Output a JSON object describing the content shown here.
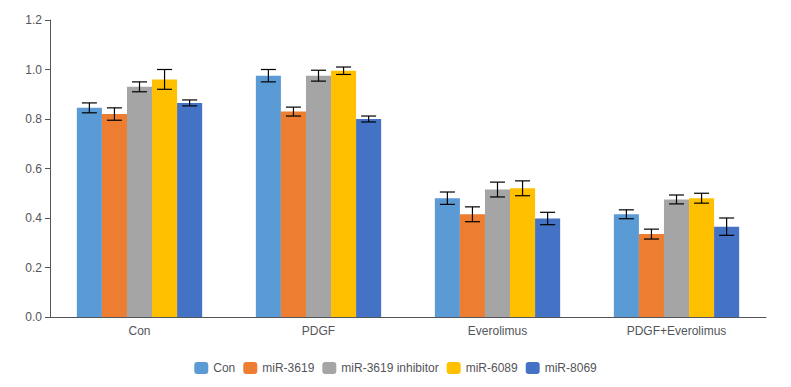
{
  "chart_data": {
    "type": "bar",
    "categories": [
      "Con",
      "PDGF",
      "Everolimus",
      "PDGF+Everolimus"
    ],
    "series": [
      {
        "name": "Con",
        "color": "#5B9BD5",
        "values": [
          0.845,
          0.975,
          0.48,
          0.415
        ],
        "errors": [
          0.02,
          0.025,
          0.025,
          0.018
        ]
      },
      {
        "name": "miR-3619",
        "color": "#ED7D31",
        "values": [
          0.82,
          0.83,
          0.415,
          0.335
        ],
        "errors": [
          0.025,
          0.018,
          0.03,
          0.02
        ]
      },
      {
        "name": "miR-3619 inhibitor",
        "color": "#A5A5A5",
        "values": [
          0.93,
          0.975,
          0.515,
          0.475
        ],
        "errors": [
          0.02,
          0.022,
          0.03,
          0.018
        ]
      },
      {
        "name": "miR-6089",
        "color": "#FFC000",
        "values": [
          0.96,
          0.995,
          0.52,
          0.48
        ],
        "errors": [
          0.04,
          0.015,
          0.03,
          0.02
        ]
      },
      {
        "name": "miR-8069",
        "color": "#4472C4",
        "values": [
          0.865,
          0.8,
          0.398,
          0.365
        ],
        "errors": [
          0.012,
          0.012,
          0.025,
          0.035
        ]
      }
    ],
    "ylim": [
      0,
      1.2
    ],
    "yticks": [
      {
        "value": 0,
        "label": "0.0"
      },
      0.2,
      0.4,
      0.6,
      0.8,
      {
        "value": 1.0,
        "label": "1.0"
      },
      1.2
    ],
    "grid": false,
    "legend": "bottom"
  }
}
